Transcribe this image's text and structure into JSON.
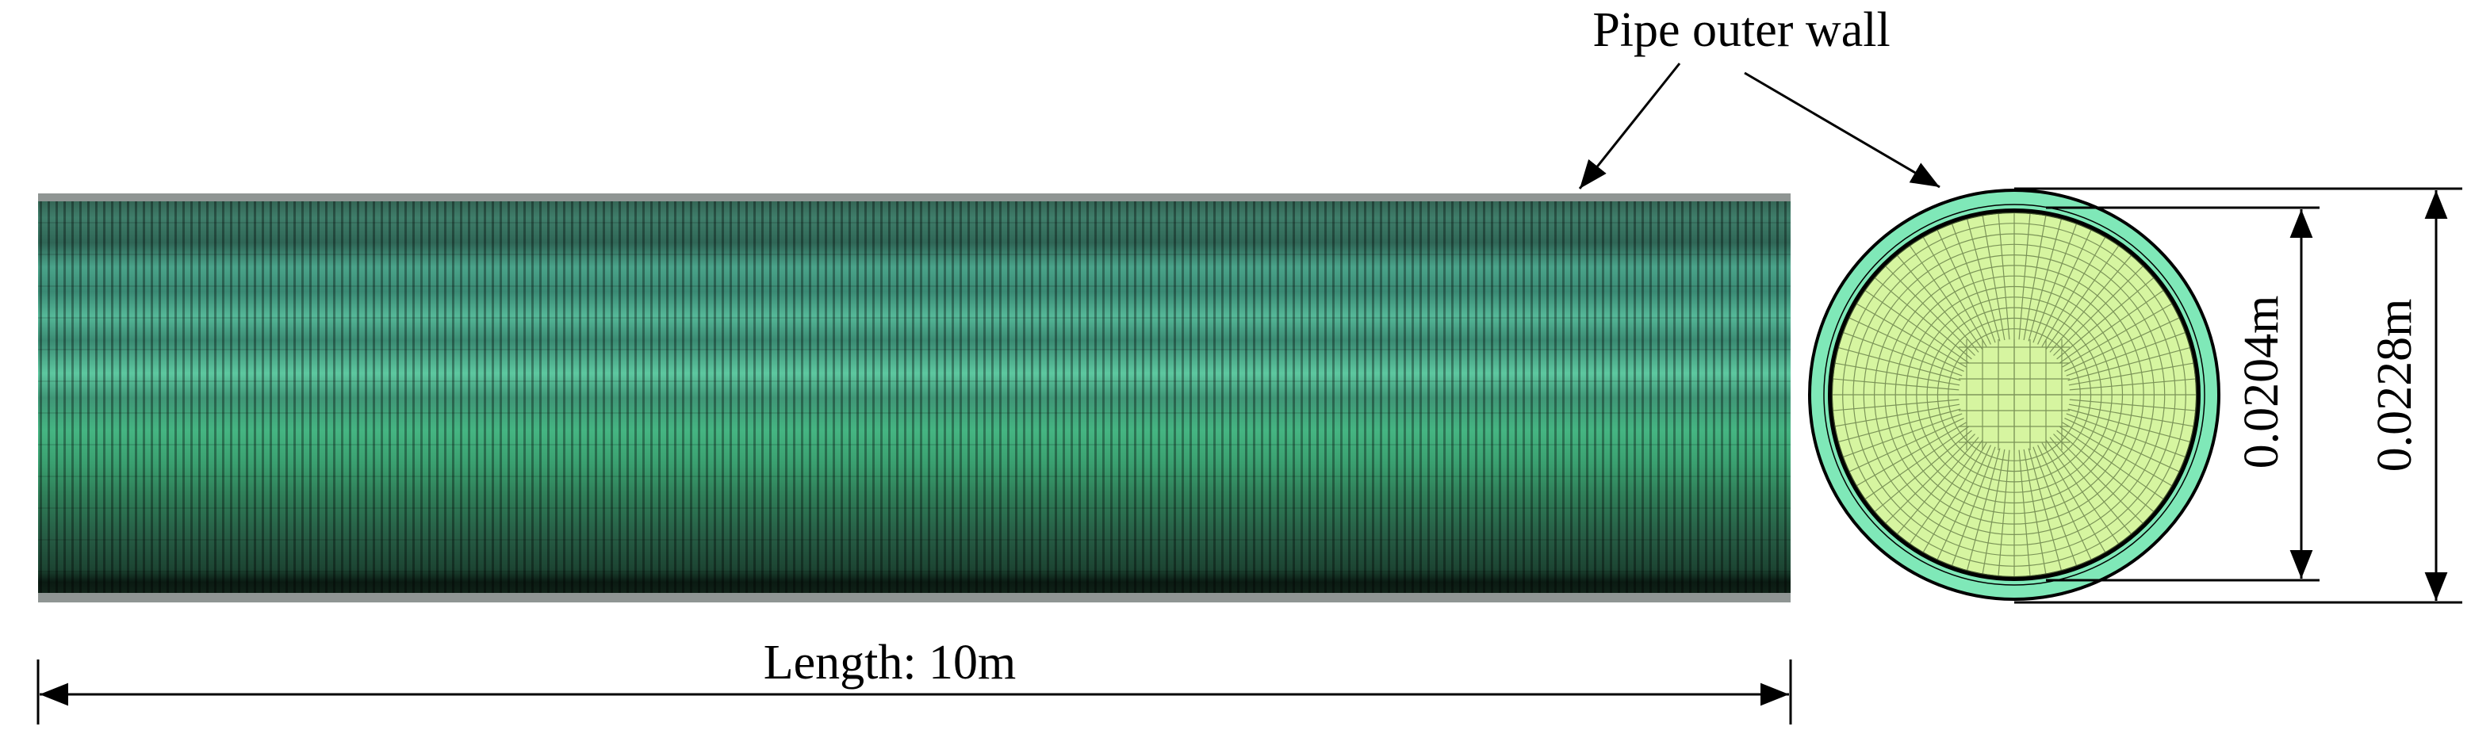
{
  "labels": {
    "wall": "Pipe outer wall",
    "length": "Length: 10m",
    "inner_diameter": "0.0204m",
    "outer_diameter": "0.0228m"
  }
}
